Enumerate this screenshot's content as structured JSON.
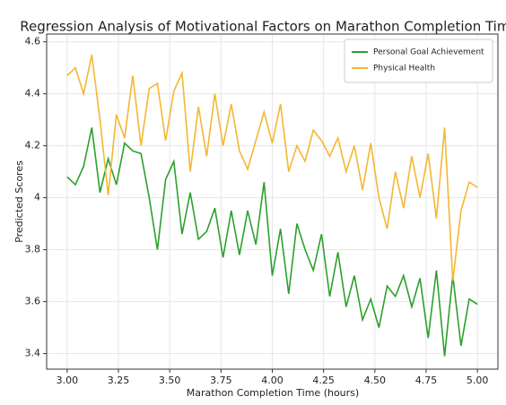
{
  "chart_data": {
    "type": "line",
    "title": "Regression Analysis of Motivational Factors on Marathon Completion Time",
    "x_label": "Marathon Completion Time (hours)",
    "y_label": "Predicted Scores",
    "x": [
      3.0,
      3.04,
      3.08,
      3.12,
      3.16,
      3.2,
      3.24,
      3.28,
      3.32,
      3.36,
      3.4,
      3.44,
      3.48,
      3.52,
      3.56,
      3.6,
      3.64,
      3.68,
      3.72,
      3.76,
      3.8,
      3.84,
      3.88,
      3.92,
      3.96,
      4.0,
      4.04,
      4.08,
      4.12,
      4.16,
      4.2,
      4.24,
      4.28,
      4.32,
      4.36,
      4.4,
      4.44,
      4.48,
      4.52,
      4.56,
      4.6,
      4.64,
      4.68,
      4.72,
      4.76,
      4.8,
      4.84,
      4.88,
      4.92,
      4.96,
      5.0
    ],
    "series": [
      {
        "name": "Personal Goal Achievement",
        "color": "#2ca02c",
        "values": [
          4.08,
          4.05,
          4.12,
          4.27,
          4.02,
          4.15,
          4.05,
          4.21,
          4.18,
          4.17,
          4.0,
          3.8,
          4.07,
          4.14,
          3.86,
          4.02,
          3.84,
          3.87,
          3.96,
          3.77,
          3.95,
          3.78,
          3.95,
          3.82,
          4.06,
          3.7,
          3.88,
          3.63,
          3.9,
          3.8,
          3.72,
          3.86,
          3.62,
          3.79,
          3.58,
          3.7,
          3.53,
          3.61,
          3.5,
          3.66,
          3.62,
          3.7,
          3.58,
          3.69,
          3.46,
          3.72,
          3.39,
          3.7,
          3.43,
          3.61,
          3.59
        ]
      },
      {
        "name": "Physical Health",
        "color": "#f5b731",
        "values": [
          4.47,
          4.5,
          4.4,
          4.55,
          4.3,
          4.01,
          4.32,
          4.23,
          4.47,
          4.2,
          4.42,
          4.44,
          4.22,
          4.41,
          4.48,
          4.1,
          4.35,
          4.16,
          4.4,
          4.2,
          4.36,
          4.18,
          4.11,
          4.22,
          4.33,
          4.21,
          4.36,
          4.1,
          4.2,
          4.14,
          4.26,
          4.22,
          4.16,
          4.23,
          4.1,
          4.2,
          4.03,
          4.21,
          4.0,
          3.88,
          4.1,
          3.96,
          4.16,
          4.0,
          4.17,
          3.92,
          4.27,
          3.68,
          3.95,
          4.06,
          4.04
        ]
      }
    ],
    "xlim": [
      2.9,
      5.1
    ],
    "ylim": [
      3.34,
      4.63
    ],
    "xticks": [
      {
        "value": 3,
        "label": "3.00"
      },
      {
        "value": 3.25,
        "label": "3.25"
      },
      {
        "value": 3.5,
        "label": "3.50"
      },
      {
        "value": 3.75,
        "label": "3.75"
      },
      {
        "value": 4,
        "label": "4.00"
      },
      {
        "value": 4.25,
        "label": "4.25"
      },
      {
        "value": 4.5,
        "label": "4.50"
      },
      {
        "value": 4.75,
        "label": "4.75"
      },
      {
        "value": 5,
        "label": "5.00"
      }
    ],
    "yticks": [
      3.4,
      3.6,
      3.8,
      4.0,
      4.2,
      4.4,
      4.6
    ],
    "grid": true,
    "legend": "upper right"
  }
}
